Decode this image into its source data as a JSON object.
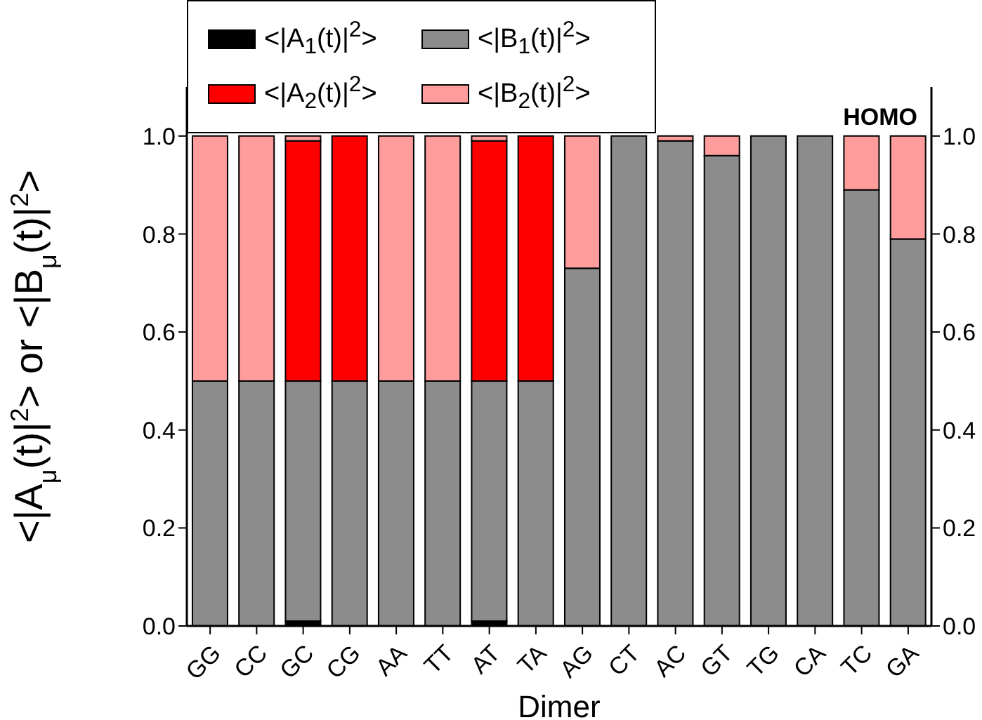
{
  "chart_data": {
    "type": "bar",
    "stacked": true,
    "xlabel": "Dimer",
    "ylabel": "<|A$_{μ}$(t)|$^{2}$> or <|B$_{μ}$(t)|$^{2}$>",
    "annotations": [
      "HOMO"
    ],
    "categories": [
      "GG",
      "CC",
      "GC",
      "CG",
      "AA",
      "TT",
      "AT",
      "TA",
      "AG",
      "CT",
      "AC",
      "GT",
      "TG",
      "CA",
      "TC",
      "GA"
    ],
    "series": [
      {
        "name": "<|A$_{1}$(t)|$^{2}$>",
        "color": "#000000",
        "values": [
          0,
          0,
          0.01,
          0,
          0,
          0,
          0.01,
          0,
          0,
          0,
          0,
          0,
          0,
          0,
          0,
          0
        ]
      },
      {
        "name": "<|B$_{1}$(t)|$^{2}$>",
        "color": "#8c8c8c",
        "values": [
          0.5,
          0.5,
          0.49,
          0.5,
          0.5,
          0.5,
          0.49,
          0.5,
          0.73,
          1.0,
          0.99,
          0.96,
          1.0,
          1.0,
          0.89,
          0.79
        ]
      },
      {
        "name": "<|A$_{2}$(t)|$^{2}$>",
        "color": "#ff0000",
        "values": [
          0,
          0,
          0.49,
          0.5,
          0,
          0,
          0.49,
          0.5,
          0,
          0,
          0,
          0,
          0,
          0,
          0,
          0
        ]
      },
      {
        "name": "<|B$_{2}$(t)|$^{2}$>",
        "color": "#ff9c9c",
        "values": [
          0.5,
          0.5,
          0.01,
          0,
          0.5,
          0.5,
          0.01,
          0,
          0.27,
          0,
          0.01,
          0.04,
          0,
          0,
          0.11,
          0.21
        ]
      }
    ],
    "ylim": [
      0,
      1.1
    ],
    "yticks": [
      {
        "value": 0,
        "label": "0.0"
      },
      {
        "value": 0.2,
        "label": "0.2"
      },
      {
        "value": 0.4,
        "label": "0.4"
      },
      {
        "value": 0.6,
        "label": "0.6"
      },
      {
        "value": 0.8,
        "label": "0.8"
      },
      {
        "value": 1,
        "label": "1.0"
      }
    ],
    "y2lim": [
      0,
      1.1
    ],
    "y2ticks": [
      {
        "value": 0,
        "label": "0.0"
      },
      {
        "value": 0.2,
        "label": "0.2"
      },
      {
        "value": 0.4,
        "label": "0.4"
      },
      {
        "value": 0.6,
        "label": "0.6"
      },
      {
        "value": 0.8,
        "label": "0.8"
      },
      {
        "value": 1,
        "label": "1.0"
      }
    ],
    "legend": "top",
    "grid": false
  }
}
